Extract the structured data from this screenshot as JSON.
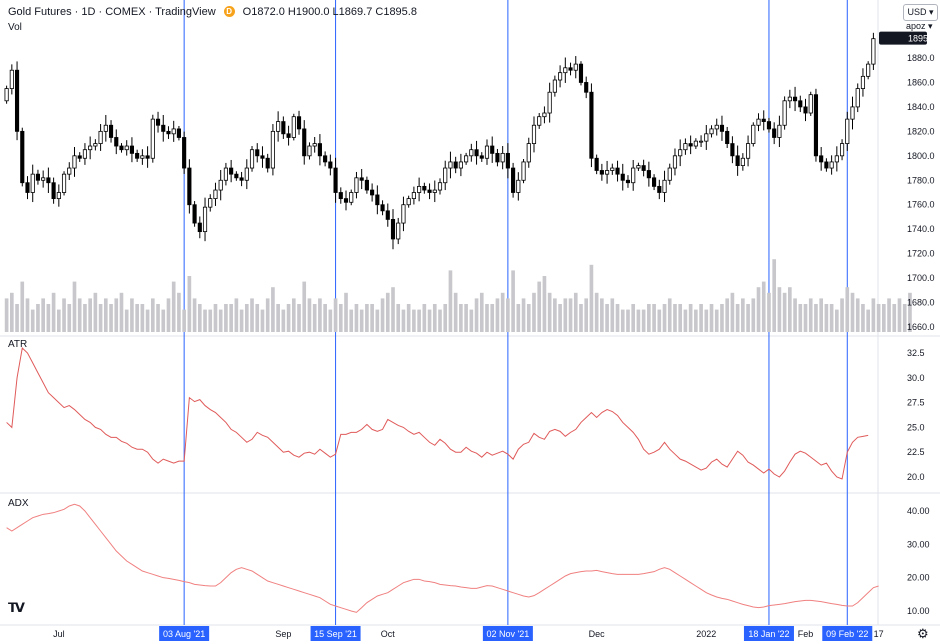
{
  "header": {
    "symbol": "Gold Futures · 1D · COMEX · TradingView",
    "badge": "D",
    "ohlc": "O1872.0 H1900.0 L1869.7 C1895.8",
    "vol_label": "Vol"
  },
  "controls": {
    "currency": "USD ▾",
    "scale_mode": "apoz ▾"
  },
  "pane_labels": {
    "atr": "ATR",
    "adx": "ADX"
  },
  "colors": {
    "candle_fill_up": "#ffffff",
    "candle_fill_down": "#000000",
    "candle_border": "#000000",
    "volume": "#c8c8cc",
    "atr_line": "#e05a5a",
    "adx_line": "#f08080",
    "crosshair": "#2962ff",
    "date_label_bg": "#2962ff",
    "last_price_bg": "#131722"
  },
  "chart_data": [
    {
      "type": "candlestick",
      "title": "Gold Futures · 1D · COMEX · TradingView",
      "last_price": "1895.8",
      "y_ticks": [
        "1880.0",
        "1860.0",
        "1840.0",
        "1820.0",
        "1800.0",
        "1780.0",
        "1760.0",
        "1740.0",
        "1720.0",
        "1700.0",
        "1680.0",
        "1660.0"
      ],
      "ylim": [
        1660,
        1890
      ],
      "closes": [
        1855,
        1870,
        1820,
        1778,
        1770,
        1785,
        1780,
        1782,
        1778,
        1765,
        1770,
        1785,
        1790,
        1800,
        1798,
        1805,
        1808,
        1810,
        1820,
        1825,
        1815,
        1808,
        1805,
        1808,
        1802,
        1798,
        1800,
        1798,
        1830,
        1825,
        1820,
        1818,
        1822,
        1815,
        1790,
        1760,
        1745,
        1738,
        1758,
        1765,
        1772,
        1780,
        1790,
        1785,
        1782,
        1780,
        1790,
        1805,
        1800,
        1798,
        1790,
        1820,
        1828,
        1818,
        1815,
        1832,
        1822,
        1800,
        1808,
        1810,
        1800,
        1795,
        1790,
        1770,
        1765,
        1762,
        1770,
        1782,
        1780,
        1772,
        1768,
        1760,
        1755,
        1748,
        1732,
        1745,
        1760,
        1765,
        1770,
        1775,
        1772,
        1770,
        1772,
        1778,
        1790,
        1795,
        1790,
        1795,
        1800,
        1805,
        1800,
        1798,
        1808,
        1802,
        1795,
        1802,
        1790,
        1770,
        1780,
        1795,
        1810,
        1825,
        1832,
        1835,
        1852,
        1862,
        1868,
        1872,
        1870,
        1875,
        1860,
        1852,
        1798,
        1788,
        1785,
        1788,
        1790,
        1785,
        1780,
        1778,
        1790,
        1792,
        1788,
        1782,
        1775,
        1770,
        1780,
        1790,
        1800,
        1805,
        1810,
        1808,
        1812,
        1812,
        1818,
        1822,
        1825,
        1820,
        1810,
        1800,
        1792,
        1798,
        1810,
        1825,
        1830,
        1828,
        1822,
        1815,
        1825,
        1845,
        1848,
        1845,
        1840,
        1835,
        1850,
        1800,
        1795,
        1790,
        1795,
        1800,
        1810,
        1830,
        1840,
        1855,
        1865,
        1875,
        1895.8
      ],
      "x_ticks": [
        {
          "label": "Jul",
          "i": 10
        },
        {
          "label": "Sep",
          "i": 53
        },
        {
          "label": "Oct",
          "i": 73
        },
        {
          "label": "Dec",
          "i": 113
        },
        {
          "label": "2022",
          "i": 134
        },
        {
          "label": "Feb",
          "i": 153
        },
        {
          "label": "17",
          "i": 167
        }
      ],
      "marked_dates": [
        {
          "label": "03 Aug '21",
          "i": 34
        },
        {
          "label": "15 Sep '21",
          "i": 63
        },
        {
          "label": "02 Nov '21",
          "i": 96
        },
        {
          "label": "18 Jan '22",
          "i": 146
        },
        {
          "label": "09 Feb '22",
          "i": 161
        }
      ]
    },
    {
      "type": "bar",
      "series_label": "Vol",
      "values": [
        0.6,
        0.7,
        0.5,
        0.9,
        0.6,
        0.4,
        0.5,
        0.6,
        0.5,
        0.7,
        0.4,
        0.6,
        0.5,
        0.9,
        0.6,
        0.5,
        0.6,
        0.7,
        0.5,
        0.6,
        0.5,
        0.6,
        0.7,
        0.4,
        0.6,
        0.5,
        0.5,
        0.4,
        0.6,
        0.5,
        0.4,
        0.6,
        0.9,
        0.7,
        0.4,
        1.0,
        0.6,
        0.5,
        0.4,
        0.4,
        0.5,
        0.4,
        0.5,
        0.5,
        0.6,
        0.4,
        0.5,
        0.6,
        0.5,
        0.4,
        0.6,
        0.8,
        0.5,
        0.4,
        0.5,
        0.6,
        0.5,
        0.9,
        0.6,
        0.5,
        0.6,
        0.5,
        0.4,
        0.6,
        0.5,
        0.7,
        0.4,
        0.5,
        0.4,
        0.5,
        0.5,
        0.4,
        0.6,
        0.7,
        0.8,
        0.5,
        0.4,
        0.5,
        0.4,
        0.4,
        0.5,
        0.4,
        0.5,
        0.4,
        0.5,
        1.1,
        0.7,
        0.5,
        0.5,
        0.4,
        0.6,
        0.7,
        0.5,
        0.5,
        0.6,
        0.7,
        0.6,
        1.1,
        0.5,
        0.6,
        0.5,
        0.7,
        0.9,
        1.0,
        0.7,
        0.6,
        0.5,
        0.6,
        0.6,
        0.7,
        0.5,
        0.6,
        1.2,
        0.7,
        0.6,
        0.5,
        0.6,
        0.5,
        0.4,
        0.4,
        0.5,
        0.4,
        0.4,
        0.5,
        0.5,
        0.4,
        0.5,
        0.6,
        0.5,
        0.5,
        0.4,
        0.5,
        0.4,
        0.5,
        0.4,
        0.5,
        0.4,
        0.5,
        0.6,
        0.7,
        0.5,
        0.6,
        0.5,
        0.6,
        0.8,
        0.9,
        0.7,
        1.3,
        0.8,
        0.7,
        0.8,
        0.6,
        0.5,
        0.5,
        0.6,
        0.5,
        0.6,
        0.5,
        0.5,
        0.4,
        0.6,
        0.8,
        0.7,
        0.6,
        0.5,
        0.4,
        0.6,
        0.5,
        0.5,
        0.6,
        0.5,
        0.6,
        0.5,
        0.7
      ]
    },
    {
      "type": "line",
      "series_label": "ATR",
      "y_ticks": [
        "32.5",
        "30.0",
        "27.5",
        "25.0",
        "22.5",
        "20.0"
      ],
      "ylim": [
        18.5,
        34
      ],
      "values": [
        25.5,
        25.0,
        30.0,
        33.0,
        32.5,
        31.5,
        30.5,
        29.5,
        28.5,
        28.0,
        27.5,
        27.0,
        27.2,
        26.8,
        26.3,
        25.8,
        25.5,
        25.0,
        24.8,
        24.3,
        24.0,
        24.0,
        23.6,
        23.4,
        23.0,
        22.8,
        22.8,
        22.5,
        21.8,
        21.4,
        21.8,
        21.6,
        21.4,
        21.6,
        21.6,
        28.0,
        27.6,
        27.8,
        27.2,
        26.8,
        26.5,
        26.0,
        25.5,
        24.8,
        24.5,
        24.0,
        23.5,
        23.8,
        24.5,
        24.2,
        24.0,
        23.5,
        23.0,
        22.5,
        22.6,
        22.2,
        22.0,
        22.4,
        22.5,
        22.3,
        22.8,
        22.4,
        22.0,
        22.3,
        24.3,
        24.3,
        24.5,
        24.5,
        24.8,
        25.3,
        24.8,
        24.6,
        24.8,
        25.8,
        25.5,
        25.2,
        25.0,
        24.6,
        24.3,
        24.5,
        24.0,
        23.5,
        23.2,
        23.8,
        23.4,
        22.8,
        22.5,
        22.5,
        23.0,
        22.6,
        22.4,
        22.0,
        22.5,
        22.2,
        22.4,
        22.6,
        22.3,
        21.8,
        22.8,
        23.3,
        23.5,
        24.4,
        24.0,
        23.8,
        24.6,
        24.8,
        24.6,
        24.1,
        24.5,
        24.8,
        25.5,
        26.0,
        26.5,
        26.0,
        26.5,
        26.8,
        26.6,
        26.2,
        25.5,
        25.0,
        24.5,
        23.8,
        22.8,
        22.3,
        22.5,
        22.8,
        23.5,
        22.8,
        22.3,
        21.8,
        21.6,
        21.3,
        21.0,
        20.7,
        20.9,
        21.5,
        21.8,
        21.3,
        21.0,
        21.8,
        22.6,
        22.2,
        21.5,
        21.2,
        20.8,
        20.4,
        20.8,
        20.3,
        20.0,
        20.6,
        21.5,
        22.3,
        22.6,
        22.4,
        22.0,
        21.6,
        21.2,
        21.4,
        20.6,
        20.0,
        19.8,
        22.5,
        23.5,
        24.0,
        24.1,
        24.2
      ]
    },
    {
      "type": "line",
      "series_label": "ADX",
      "y_ticks": [
        "40.00",
        "30.00",
        "20.00",
        "10.00"
      ],
      "ylim": [
        7,
        44
      ],
      "values": [
        35,
        34,
        35,
        36,
        37,
        38,
        38.5,
        39,
        39.2,
        39.5,
        40,
        40.5,
        41.5,
        42,
        41.5,
        40,
        38,
        36,
        34,
        32,
        30,
        28,
        26.5,
        25,
        24,
        23,
        22,
        21.5,
        21,
        20.5,
        20,
        19.8,
        19.5,
        19.2,
        18.8,
        18.5,
        18,
        17.8,
        17.6,
        17.5,
        17.5,
        18.5,
        20,
        21.5,
        22.5,
        23,
        22.5,
        22,
        21,
        20,
        19,
        18.5,
        18,
        17.5,
        17,
        16.5,
        16,
        15.5,
        15,
        14.5,
        14,
        13,
        12,
        11.5,
        11,
        10.5,
        10,
        9.6,
        11,
        12.5,
        13.5,
        14.5,
        15,
        15.5,
        16.5,
        17.5,
        18.5,
        19,
        19.5,
        19.5,
        19,
        18.8,
        18.5,
        18,
        17.8,
        17.6,
        17.5,
        17.2,
        17,
        16.8,
        16.8,
        17.2,
        17.6,
        17.5,
        17,
        16.5,
        16,
        15.5,
        15,
        14.5,
        14.2,
        14.6,
        15.5,
        16.5,
        17.5,
        18.5,
        19.5,
        20.5,
        21.2,
        21.5,
        21.8,
        22,
        22,
        22.2,
        21.8,
        21.5,
        21.2,
        21,
        21,
        21,
        21,
        21,
        21.2,
        21.5,
        21.8,
        22.5,
        23,
        22.5,
        21.5,
        20.5,
        19.5,
        18.5,
        17.5,
        16.5,
        15.5,
        14.8,
        14.2,
        13.8,
        13.5,
        13,
        12.5,
        12,
        11.6,
        11.2,
        11,
        11.2,
        11.6,
        11.8,
        12,
        12.2,
        12.5,
        12.8,
        13,
        13.2,
        13.2,
        13,
        12.8,
        12.5,
        12.2,
        12,
        11.7,
        11.5,
        11.5,
        12.5,
        14,
        15.5,
        17,
        17.5
      ]
    }
  ]
}
